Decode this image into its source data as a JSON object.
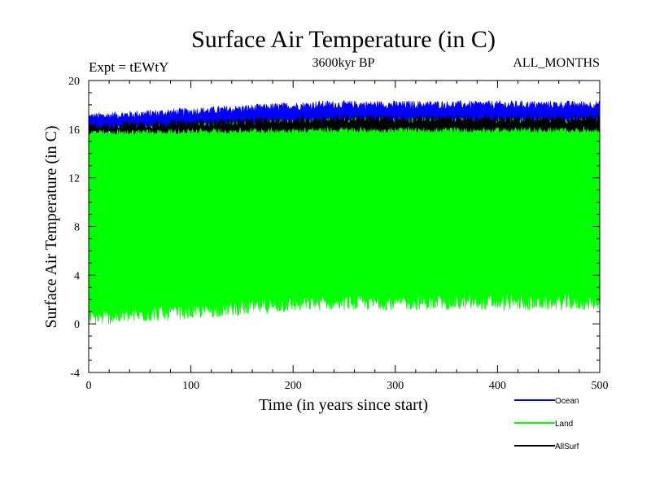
{
  "chart_data": {
    "type": "area",
    "title": "Surface Air Temperature (in C)",
    "subtitle": "3600kyr BP",
    "experiment_label": "Expt = tEWtY",
    "months_label": "ALL_MONTHS",
    "xlabel": "Time (in years since start)",
    "ylabel": "Surface Air Temperature (in C)",
    "xlim": [
      0,
      500
    ],
    "ylim": [
      -4,
      20
    ],
    "x_ticks": [
      0,
      100,
      200,
      300,
      400,
      500
    ],
    "y_ticks": [
      -4,
      0,
      4,
      8,
      12,
      16,
      20
    ],
    "legend_position": "bottom-right",
    "series": [
      {
        "name": "Ocean",
        "color": "#0000ff",
        "range_min_start": 15.8,
        "range_min_end": 16.6,
        "range_max_start": 17.0,
        "range_max_end": 18.0
      },
      {
        "name": "Land",
        "color": "#00ff00",
        "range_min_start": 0.5,
        "range_min_end": 1.8,
        "range_max_start": 15.8,
        "range_max_end": 16.6
      },
      {
        "name": "AllSurf",
        "color": "#000000",
        "range_min_start": 15.8,
        "range_min_end": 16.0,
        "range_max_start": 16.2,
        "range_max_end": 16.8
      }
    ]
  }
}
